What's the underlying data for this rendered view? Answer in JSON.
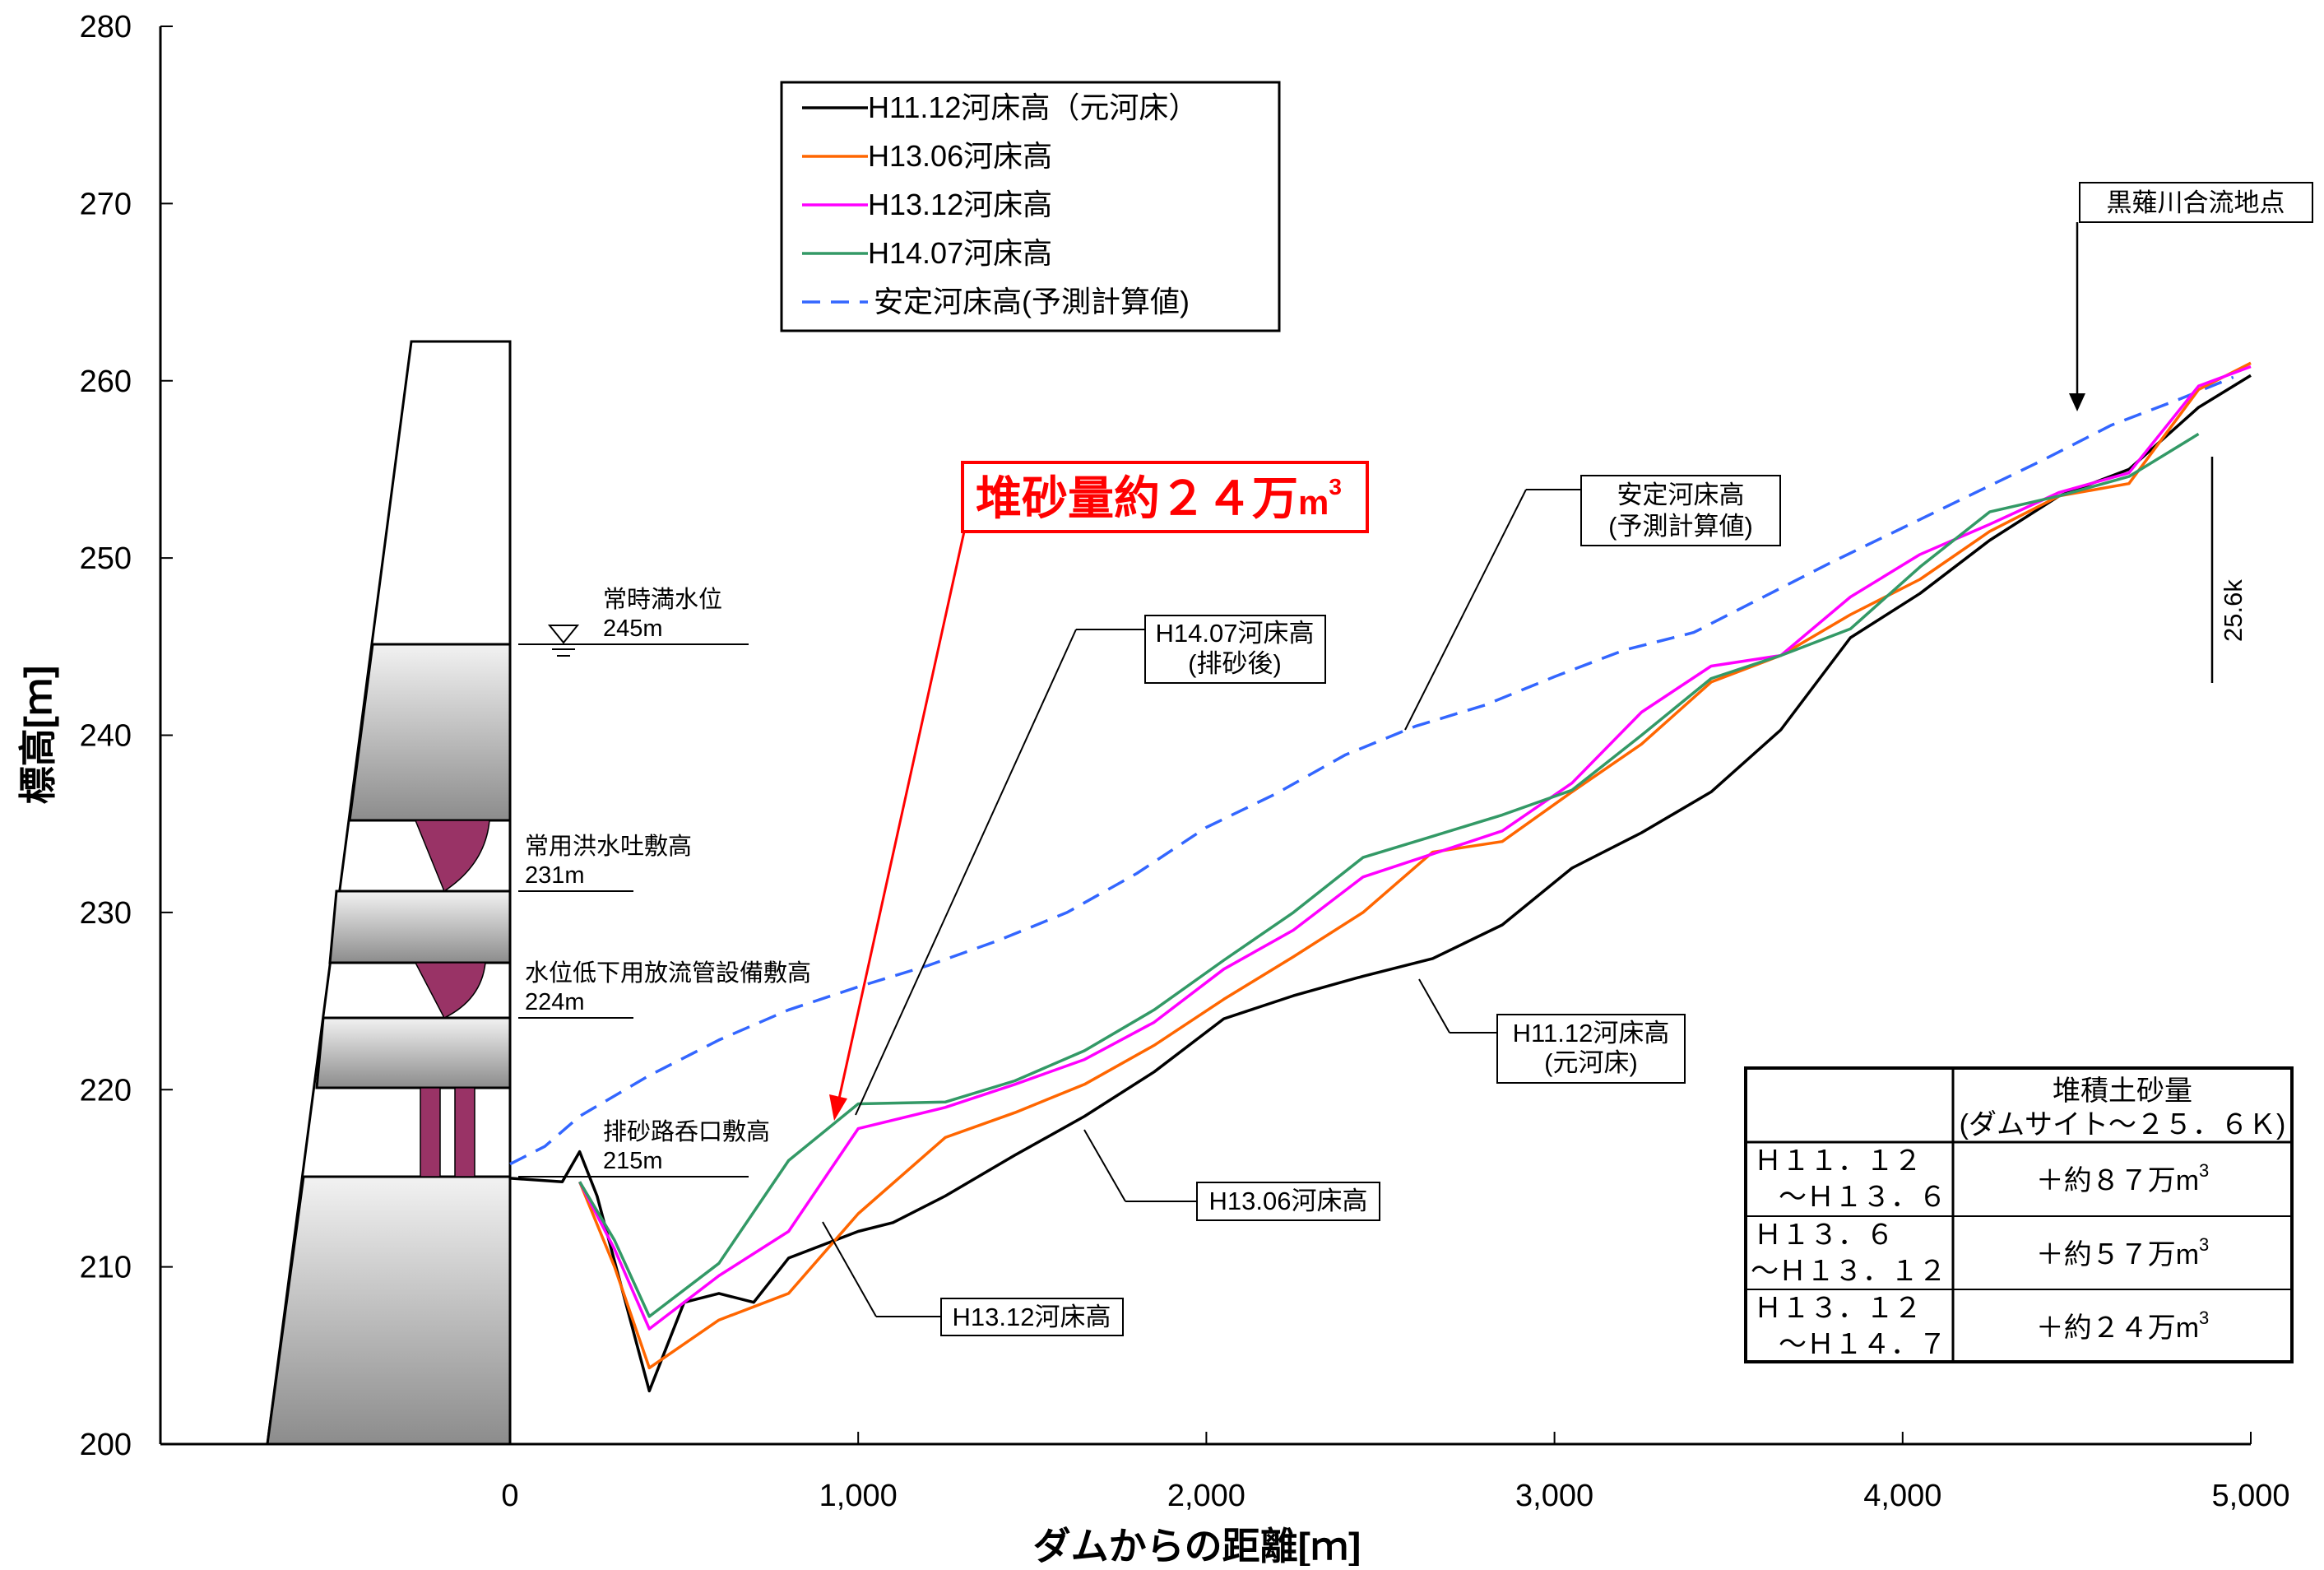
{
  "chart_data": {
    "type": "line",
    "xlabel": "ダムからの距離[ｍ]",
    "ylabel": "標高[ｍ]",
    "xlim": [
      -1000,
      5000
    ],
    "ylim": [
      200,
      280
    ],
    "x_ticks": [
      0,
      1000,
      2000,
      3000,
      4000,
      5000
    ],
    "x_tick_labels": [
      "0",
      "1,000",
      "2,000",
      "3,000",
      "4,000",
      "5,000"
    ],
    "y_ticks": [
      200,
      210,
      220,
      230,
      240,
      250,
      260,
      270,
      280
    ],
    "y_tick_labels": [
      "200",
      "210",
      "220",
      "230",
      "240",
      "250",
      "260",
      "270",
      "280"
    ],
    "grid": false,
    "legend_position": "top-center",
    "series": [
      {
        "name": "H11.12河床高（元河床）",
        "color": "#000000",
        "dash": "solid",
        "points": [
          [
            0,
            215
          ],
          [
            150,
            214.8
          ],
          [
            200,
            216.5
          ],
          [
            250,
            214
          ],
          [
            400,
            203
          ],
          [
            500,
            208
          ],
          [
            600,
            208.5
          ],
          [
            700,
            208
          ],
          [
            800,
            210.5
          ],
          [
            1000,
            212
          ],
          [
            1100,
            212.5
          ],
          [
            1250,
            214
          ],
          [
            1450,
            216.3
          ],
          [
            1650,
            218.5
          ],
          [
            1850,
            221
          ],
          [
            2050,
            224
          ],
          [
            2250,
            225.3
          ],
          [
            2450,
            226.4
          ],
          [
            2650,
            227.4
          ],
          [
            2850,
            229.3
          ],
          [
            3050,
            232.5
          ],
          [
            3250,
            234.5
          ],
          [
            3450,
            236.8
          ],
          [
            3650,
            240.3
          ],
          [
            3850,
            245.5
          ],
          [
            4050,
            248
          ],
          [
            4250,
            251
          ],
          [
            4450,
            253.5
          ],
          [
            4650,
            255
          ],
          [
            4850,
            258.5
          ],
          [
            5000,
            260.3
          ]
        ]
      },
      {
        "name": "H13.06河床高",
        "color": "#ff6600",
        "dash": "solid",
        "points": [
          [
            200,
            214.8
          ],
          [
            300,
            210
          ],
          [
            400,
            204.3
          ],
          [
            600,
            207
          ],
          [
            800,
            208.5
          ],
          [
            1000,
            213
          ],
          [
            1250,
            217.3
          ],
          [
            1450,
            218.7
          ],
          [
            1650,
            220.3
          ],
          [
            1850,
            222.5
          ],
          [
            2050,
            225.1
          ],
          [
            2250,
            227.5
          ],
          [
            2450,
            230
          ],
          [
            2650,
            233.4
          ],
          [
            2850,
            234
          ],
          [
            3050,
            236.8
          ],
          [
            3250,
            239.5
          ],
          [
            3450,
            243
          ],
          [
            3650,
            244.5
          ],
          [
            3850,
            246.8
          ],
          [
            4050,
            248.8
          ],
          [
            4250,
            251.5
          ],
          [
            4450,
            253.5
          ],
          [
            4650,
            254.2
          ],
          [
            4850,
            259.5
          ],
          [
            5000,
            261
          ]
        ]
      },
      {
        "name": "H13.12河床高",
        "color": "#ff00ff",
        "dash": "solid",
        "points": [
          [
            200,
            214.8
          ],
          [
            300,
            211
          ],
          [
            400,
            206.5
          ],
          [
            600,
            209.5
          ],
          [
            800,
            212
          ],
          [
            1000,
            217.8
          ],
          [
            1250,
            219
          ],
          [
            1450,
            220.3
          ],
          [
            1650,
            221.7
          ],
          [
            1850,
            223.8
          ],
          [
            2050,
            226.8
          ],
          [
            2250,
            229
          ],
          [
            2450,
            232
          ],
          [
            2650,
            233.3
          ],
          [
            2850,
            234.6
          ],
          [
            3050,
            237.3
          ],
          [
            3250,
            241.3
          ],
          [
            3450,
            243.9
          ],
          [
            3650,
            244.5
          ],
          [
            3850,
            247.8
          ],
          [
            4050,
            250.2
          ],
          [
            4250,
            251.9
          ],
          [
            4450,
            253.7
          ],
          [
            4650,
            254.8
          ],
          [
            4850,
            259.7
          ],
          [
            5000,
            260.8
          ]
        ]
      },
      {
        "name": "H14.07河床高",
        "color": "#339966",
        "dash": "solid",
        "points": [
          [
            200,
            214.8
          ],
          [
            300,
            211.5
          ],
          [
            400,
            207.2
          ],
          [
            600,
            210.2
          ],
          [
            800,
            216
          ],
          [
            1000,
            219.2
          ],
          [
            1250,
            219.3
          ],
          [
            1450,
            220.5
          ],
          [
            1650,
            222.2
          ],
          [
            1850,
            224.5
          ],
          [
            2050,
            227.3
          ],
          [
            2250,
            230
          ],
          [
            2450,
            233.1
          ],
          [
            2650,
            234.3
          ],
          [
            2850,
            235.5
          ],
          [
            3050,
            236.9
          ],
          [
            3250,
            240
          ],
          [
            3450,
            243.2
          ],
          [
            3650,
            244.5
          ],
          [
            3850,
            246
          ],
          [
            4050,
            249.5
          ],
          [
            4250,
            252.6
          ],
          [
            4450,
            253.5
          ],
          [
            4650,
            254.6
          ],
          [
            4850,
            257
          ]
        ]
      },
      {
        "name": "安定河床高(予測計算値)",
        "color": "#3366ff",
        "dash": "dashed",
        "points": [
          [
            0,
            215.8
          ],
          [
            100,
            216.8
          ],
          [
            200,
            218.5
          ],
          [
            400,
            220.8
          ],
          [
            600,
            222.8
          ],
          [
            800,
            224.5
          ],
          [
            1000,
            225.8
          ],
          [
            1200,
            227
          ],
          [
            1400,
            228.4
          ],
          [
            1600,
            230
          ],
          [
            1800,
            232.2
          ],
          [
            2000,
            234.8
          ],
          [
            2200,
            236.7
          ],
          [
            2400,
            238.9
          ],
          [
            2600,
            240.5
          ],
          [
            2800,
            241.7
          ],
          [
            3000,
            243.3
          ],
          [
            3200,
            244.8
          ],
          [
            3400,
            245.8
          ],
          [
            3600,
            247.8
          ],
          [
            3800,
            249.8
          ],
          [
            4000,
            251.7
          ],
          [
            4200,
            253.6
          ],
          [
            4400,
            255.5
          ],
          [
            4600,
            257.5
          ],
          [
            4800,
            259
          ],
          [
            4950,
            260.2
          ]
        ]
      }
    ],
    "legend_labels": [
      "H11.12河床高（元河床）",
      "H13.06河床高",
      "H13.12河床高",
      "H14.07河床高",
      "安定河床高(予測計算値)"
    ],
    "annotations": {
      "sediment_main": "堆砂量約２４万",
      "sediment_unit": "m",
      "sediment_sup": "3",
      "confluence": "黒薙川合流地点",
      "k_marker": "25.6k",
      "levels": [
        {
          "label": "常時満水位",
          "value": "245m"
        },
        {
          "label": "常用洪水吐敷高",
          "value": "231m"
        },
        {
          "label": "水位低下用放流管設備敷高",
          "value": "224m"
        },
        {
          "label": "排砂路呑口敷高",
          "value": "215m"
        }
      ],
      "callouts": {
        "stable_1": "安定河床高",
        "stable_2": "(予測計算値)",
        "h1407_1": "H14.07河床高",
        "h1407_2": "(排砂後)",
        "h1112_1": "H11.12河床高",
        "h1112_2": "(元河床)",
        "h1306": "H13.06河床高",
        "h1312": "H13.12河床高"
      }
    },
    "table": {
      "header_1": "堆積土砂量",
      "header_2": "(ダムサイト～２５．６Ｋ)",
      "rows": [
        {
          "period_1": "Ｈ１１．１２",
          "period_2": "～Ｈ１３．６",
          "value": "＋約８７万",
          "unit": "m",
          "sup": "3"
        },
        {
          "period_1": "Ｈ１３．６",
          "period_2": "～Ｈ１３．１２",
          "value": "＋約５７万",
          "unit": "m",
          "sup": "3"
        },
        {
          "period_1": "Ｈ１３．１２",
          "period_2": "～Ｈ１４．７",
          "value": "＋約２４万",
          "unit": "m",
          "sup": "3"
        }
      ]
    }
  }
}
